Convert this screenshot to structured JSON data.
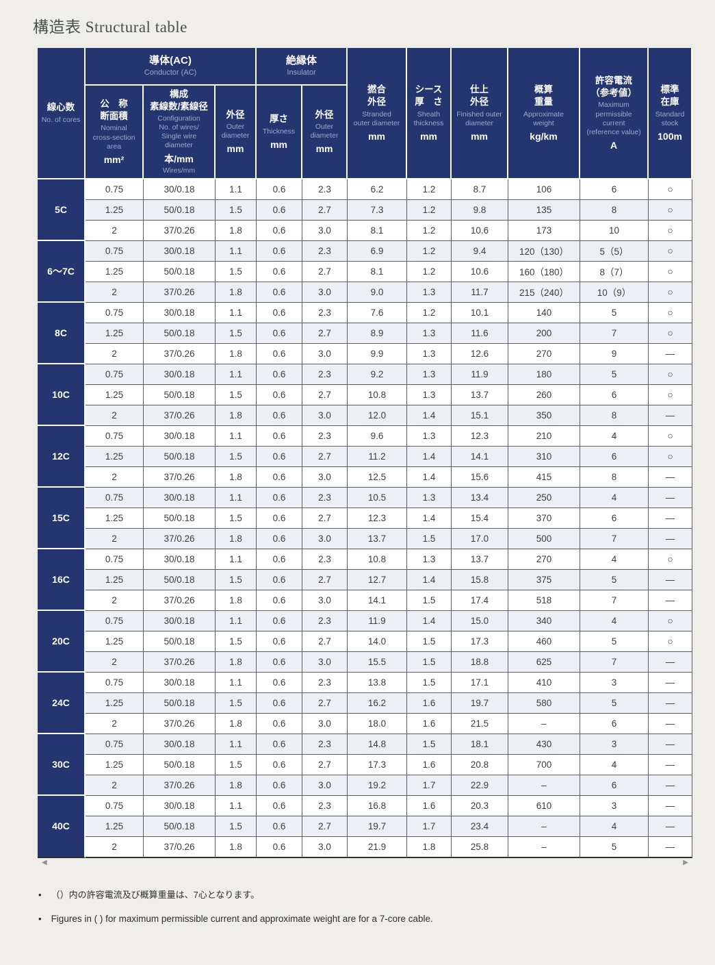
{
  "page": {
    "title_ja": "構造表",
    "title_en": "Structural table"
  },
  "colors": {
    "header_navy": "#243570",
    "zebra": "#eceff4",
    "page_bg": "#efeeea"
  },
  "scrollbar": {
    "left_icon": "◀",
    "right_icon": "▶"
  },
  "table": {
    "corner": {
      "ja": "線心数",
      "en": "No. of cores"
    },
    "group_headers": {
      "conductor": {
        "ja": "導体(AC)",
        "en": "Conductor (AC)"
      },
      "insulator": {
        "ja": "絶縁体",
        "en": "Insulator"
      }
    },
    "columns": [
      {
        "ja": "公　称\n断面積",
        "en": "Nominal\ncross-section\narea",
        "unit": "mm²"
      },
      {
        "ja": "構成\n素線数/素線径",
        "en": "Configuration\nNo. of wires/\nSingle wire\ndiameter",
        "unit": "本/mm",
        "unit_en": "Wires/mm"
      },
      {
        "ja": "外径",
        "en": "Outer\ndiameter",
        "unit": "mm"
      },
      {
        "ja": "厚さ",
        "en": "Thickness",
        "unit": "mm"
      },
      {
        "ja": "外径",
        "en": "Outer\ndiameter",
        "unit": "mm"
      },
      {
        "ja": "撚合\n外径",
        "en": "Stranded\nouter diameter",
        "unit": "mm"
      },
      {
        "ja": "シース\n厚　さ",
        "en": "Sheath\nthickness",
        "unit": "mm"
      },
      {
        "ja": "仕上\n外径",
        "en": "Finished outer\ndiameter",
        "unit": "mm"
      },
      {
        "ja": "概算\n重量",
        "en": "Approximate\nweight",
        "unit": "kg/km"
      },
      {
        "ja": "許容電流\n（参考値）",
        "en": "Maximum\npermissible\ncurrent\n(reference value)",
        "unit": "A"
      },
      {
        "ja": "標準\n在庫",
        "en": "Standard\nstock",
        "unit": "100m"
      }
    ],
    "row_groups": [
      {
        "label": "5C",
        "rows": [
          [
            "0.75",
            "30/0.18",
            "1.1",
            "0.6",
            "2.3",
            "6.2",
            "1.2",
            "8.7",
            "106",
            "6",
            "○"
          ],
          [
            "1.25",
            "50/0.18",
            "1.5",
            "0.6",
            "2.7",
            "7.3",
            "1.2",
            "9.8",
            "135",
            "8",
            "○"
          ],
          [
            "2",
            "37/0.26",
            "1.8",
            "0.6",
            "3.0",
            "8.1",
            "1.2",
            "10.6",
            "173",
            "10",
            "○"
          ]
        ]
      },
      {
        "label": "6〜7C",
        "rows": [
          [
            "0.75",
            "30/0.18",
            "1.1",
            "0.6",
            "2.3",
            "6.9",
            "1.2",
            "9.4",
            "120（130）",
            "5（5）",
            "○"
          ],
          [
            "1.25",
            "50/0.18",
            "1.5",
            "0.6",
            "2.7",
            "8.1",
            "1.2",
            "10.6",
            "160（180）",
            "8（7）",
            "○"
          ],
          [
            "2",
            "37/0.26",
            "1.8",
            "0.6",
            "3.0",
            "9.0",
            "1.3",
            "11.7",
            "215（240）",
            "10（9）",
            "○"
          ]
        ]
      },
      {
        "label": "8C",
        "rows": [
          [
            "0.75",
            "30/0.18",
            "1.1",
            "0.6",
            "2.3",
            "7.6",
            "1.2",
            "10.1",
            "140",
            "5",
            "○"
          ],
          [
            "1.25",
            "50/0.18",
            "1.5",
            "0.6",
            "2.7",
            "8.9",
            "1.3",
            "11.6",
            "200",
            "7",
            "○"
          ],
          [
            "2",
            "37/0.26",
            "1.8",
            "0.6",
            "3.0",
            "9.9",
            "1.3",
            "12.6",
            "270",
            "9",
            "—"
          ]
        ]
      },
      {
        "label": "10C",
        "rows": [
          [
            "0.75",
            "30/0.18",
            "1.1",
            "0.6",
            "2.3",
            "9.2",
            "1.3",
            "11.9",
            "180",
            "5",
            "○"
          ],
          [
            "1.25",
            "50/0.18",
            "1.5",
            "0.6",
            "2.7",
            "10.8",
            "1.3",
            "13.7",
            "260",
            "6",
            "○"
          ],
          [
            "2",
            "37/0.26",
            "1.8",
            "0.6",
            "3.0",
            "12.0",
            "1.4",
            "15.1",
            "350",
            "8",
            "—"
          ]
        ]
      },
      {
        "label": "12C",
        "rows": [
          [
            "0.75",
            "30/0.18",
            "1.1",
            "0.6",
            "2.3",
            "9.6",
            "1.3",
            "12.3",
            "210",
            "4",
            "○"
          ],
          [
            "1.25",
            "50/0.18",
            "1.5",
            "0.6",
            "2.7",
            "11.2",
            "1.4",
            "14.1",
            "310",
            "6",
            "○"
          ],
          [
            "2",
            "37/0.26",
            "1.8",
            "0.6",
            "3.0",
            "12.5",
            "1.4",
            "15.6",
            "415",
            "8",
            "—"
          ]
        ]
      },
      {
        "label": "15C",
        "rows": [
          [
            "0.75",
            "30/0.18",
            "1.1",
            "0.6",
            "2.3",
            "10.5",
            "1.3",
            "13.4",
            "250",
            "4",
            "—"
          ],
          [
            "1.25",
            "50/0.18",
            "1.5",
            "0.6",
            "2.7",
            "12.3",
            "1.4",
            "15.4",
            "370",
            "6",
            "—"
          ],
          [
            "2",
            "37/0.26",
            "1.8",
            "0.6",
            "3.0",
            "13.7",
            "1.5",
            "17.0",
            "500",
            "7",
            "—"
          ]
        ]
      },
      {
        "label": "16C",
        "rows": [
          [
            "0.75",
            "30/0.18",
            "1.1",
            "0.6",
            "2.3",
            "10.8",
            "1.3",
            "13.7",
            "270",
            "4",
            "○"
          ],
          [
            "1.25",
            "50/0.18",
            "1.5",
            "0.6",
            "2.7",
            "12.7",
            "1.4",
            "15.8",
            "375",
            "5",
            "—"
          ],
          [
            "2",
            "37/0.26",
            "1.8",
            "0.6",
            "3.0",
            "14.1",
            "1.5",
            "17.4",
            "518",
            "7",
            "—"
          ]
        ]
      },
      {
        "label": "20C",
        "rows": [
          [
            "0.75",
            "30/0.18",
            "1.1",
            "0.6",
            "2.3",
            "11.9",
            "1.4",
            "15.0",
            "340",
            "4",
            "○"
          ],
          [
            "1.25",
            "50/0.18",
            "1.5",
            "0.6",
            "2.7",
            "14.0",
            "1.5",
            "17.3",
            "460",
            "5",
            "○"
          ],
          [
            "2",
            "37/0.26",
            "1.8",
            "0.6",
            "3.0",
            "15.5",
            "1.5",
            "18.8",
            "625",
            "7",
            "—"
          ]
        ]
      },
      {
        "label": "24C",
        "rows": [
          [
            "0.75",
            "30/0.18",
            "1.1",
            "0.6",
            "2.3",
            "13.8",
            "1.5",
            "17.1",
            "410",
            "3",
            "—"
          ],
          [
            "1.25",
            "50/0.18",
            "1.5",
            "0.6",
            "2.7",
            "16.2",
            "1.6",
            "19.7",
            "580",
            "5",
            "—"
          ],
          [
            "2",
            "37/0.26",
            "1.8",
            "0.6",
            "3.0",
            "18.0",
            "1.6",
            "21.5",
            "–",
            "6",
            "—"
          ]
        ]
      },
      {
        "label": "30C",
        "rows": [
          [
            "0.75",
            "30/0.18",
            "1.1",
            "0.6",
            "2.3",
            "14.8",
            "1.5",
            "18.1",
            "430",
            "3",
            "—"
          ],
          [
            "1.25",
            "50/0.18",
            "1.5",
            "0.6",
            "2.7",
            "17.3",
            "1.6",
            "20.8",
            "700",
            "4",
            "—"
          ],
          [
            "2",
            "37/0.26",
            "1.8",
            "0.6",
            "3.0",
            "19.2",
            "1.7",
            "22.9",
            "–",
            "6",
            "—"
          ]
        ]
      },
      {
        "label": "40C",
        "rows": [
          [
            "0.75",
            "30/0.18",
            "1.1",
            "0.6",
            "2.3",
            "16.8",
            "1.6",
            "20.3",
            "610",
            "3",
            "—"
          ],
          [
            "1.25",
            "50/0.18",
            "1.5",
            "0.6",
            "2.7",
            "19.7",
            "1.7",
            "23.4",
            "–",
            "4",
            "—"
          ],
          [
            "2",
            "37/0.26",
            "1.8",
            "0.6",
            "3.0",
            "21.9",
            "1.8",
            "25.8",
            "–",
            "5",
            "—"
          ]
        ]
      }
    ]
  },
  "footnotes": [
    "（）内の許容電流及び概算重量は、7心となります。",
    "Figures in ( ) for maximum permissible current and approximate weight are for a 7-core cable."
  ]
}
